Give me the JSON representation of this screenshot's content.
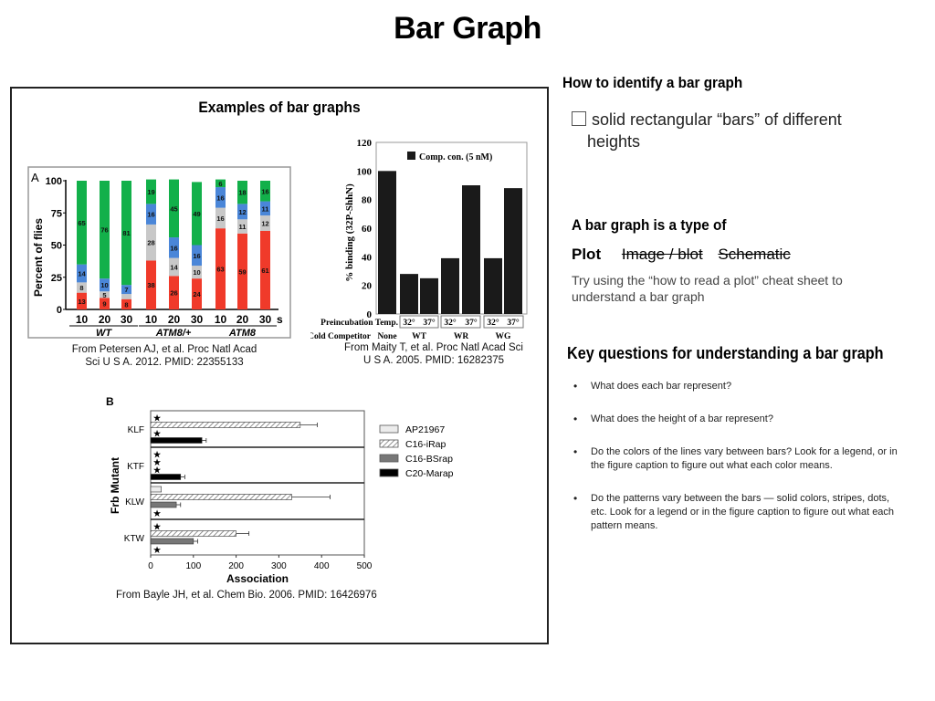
{
  "page": {
    "title": "Bar Graph"
  },
  "left_panel": {
    "title": "Examples of bar graphs",
    "captions": {
      "petersen": [
        "From Petersen AJ, et al. Proc Natl Acad",
        "Sci U S A. 2012. PMID: 22355133"
      ],
      "maity": [
        "From Maity T, et al. Proc Natl Acad Sci",
        "U S A. 2005. PMID: 16282375"
      ],
      "bayle": "From Bayle JH, et al. Chem Bio. 2006. PMID: 16426976"
    }
  },
  "right_panel": {
    "identify": {
      "heading": "How to identify a bar graph",
      "checkbox_label_line1": "solid rectangular “bars” of different",
      "checkbox_label_line2": "heights"
    },
    "type_of": {
      "heading": "A bar graph is a type of",
      "selected": "Plot",
      "struck": [
        "Image / blot",
        "Schematic"
      ],
      "hint_line1": "Try using the “how to read a plot” cheat sheet to",
      "hint_line2": "understand a bar graph"
    },
    "key_questions": {
      "heading": "Key questions for understanding a bar graph",
      "items": [
        "What does each bar represent?",
        "What does the height of a bar represent?",
        "Do the colors of the lines vary between bars? Look for a legend, or in the figure caption to figure out what each color means.",
        "Do the patterns vary between the bars — solid colors, stripes, dots, etc. Look for a legend or in the figure caption to figure out what each pattern means."
      ]
    }
  },
  "colors": {
    "red": "#f03a2a",
    "gray": "#c8c8c8",
    "blue": "#4a86d8",
    "green": "#12b04a",
    "black": "#1a1a1a"
  },
  "chart_data": [
    {
      "type": "bar",
      "stacked": true,
      "panel_label": "A",
      "title": "",
      "xlabel": "",
      "ylabel": "Percent of flies",
      "ylim": [
        0,
        100
      ],
      "yticks": [
        0,
        25,
        50,
        75,
        100
      ],
      "categories": [
        "10",
        "20",
        "30",
        "10",
        "20",
        "30",
        "10",
        "20",
        "30"
      ],
      "x_unit": "s",
      "groups": [
        {
          "label": "WT",
          "categories": [
            "10",
            "20",
            "30"
          ]
        },
        {
          "label": "ATM8/+",
          "categories": [
            "10",
            "20",
            "30"
          ]
        },
        {
          "label": "ATM8",
          "categories": [
            "10",
            "20",
            "30"
          ]
        }
      ],
      "series": [
        {
          "name": "red",
          "color": "#f03a2a",
          "values": [
            13,
            9,
            8,
            38,
            26,
            24,
            63,
            59,
            61
          ]
        },
        {
          "name": "gray",
          "color": "#c8c8c8",
          "values": [
            8,
            5,
            4,
            28,
            14,
            10,
            16,
            11,
            12
          ]
        },
        {
          "name": "blue",
          "color": "#4a86d8",
          "values": [
            14,
            10,
            7,
            16,
            16,
            16,
            16,
            12,
            11
          ]
        },
        {
          "name": "green",
          "color": "#12b04a",
          "values": [
            65,
            76,
            81,
            19,
            45,
            49,
            6,
            18,
            16
          ]
        }
      ],
      "labels_shown": [
        [
          "13",
          "8",
          "14",
          "65"
        ],
        [
          "9",
          "5",
          "10",
          "76"
        ],
        [
          "8",
          "",
          "7",
          "81"
        ],
        [
          "38",
          "28",
          "16",
          "19"
        ],
        [
          "26",
          "14",
          "16",
          "45"
        ],
        [
          "24",
          "10",
          "16",
          "49"
        ],
        [
          "63",
          "16",
          "16",
          "6"
        ],
        [
          "59",
          "11",
          "12",
          "18"
        ],
        [
          "61",
          "12",
          "11",
          "16"
        ]
      ],
      "grid": false
    },
    {
      "type": "bar",
      "title": "",
      "ylabel": "% binding (32P-ShhN)",
      "ylim": [
        0,
        120
      ],
      "yticks": [
        0,
        20,
        40,
        60,
        80,
        100,
        120
      ],
      "legend": [
        "Comp. con. (5 nM)"
      ],
      "row_labels": {
        "preincubation_temp_label": "Preincubation Temp.",
        "cold_competitor_label": "Cold Competitor"
      },
      "categories": [
        "None",
        "WT 32°",
        "WT 37°",
        "WR 32°",
        "WR 37°",
        "WG 32°",
        "WG 37°"
      ],
      "temps": [
        "",
        "32°",
        "37°",
        "32°",
        "37°",
        "32°",
        "37°"
      ],
      "competitors": [
        "None",
        "WT",
        "WR",
        "WG"
      ],
      "series": [
        {
          "name": "Comp. con. (5 nM)",
          "color": "#1a1a1a",
          "values": [
            100,
            28,
            25,
            39,
            90,
            39,
            88
          ]
        }
      ],
      "grid": false
    },
    {
      "type": "bar",
      "orientation": "horizontal",
      "panel_label": "B",
      "xlabel": "Association",
      "ylabel": "Frb Mutant",
      "xlim": [
        0,
        500
      ],
      "xticks": [
        0,
        100,
        200,
        300,
        400,
        500
      ],
      "categories": [
        "KLF",
        "KTF",
        "KLW",
        "KTW"
      ],
      "legend": [
        "AP21967",
        "C16-iRap",
        "C16-BSrap",
        "C20-Marap"
      ],
      "series": [
        {
          "name": "AP21967",
          "fill": "light",
          "values": [
            null,
            null,
            25,
            null
          ],
          "stars": [
            true,
            true,
            false,
            true
          ]
        },
        {
          "name": "C16-iRap",
          "fill": "hatched",
          "values": [
            350,
            null,
            330,
            200
          ],
          "errors": [
            40,
            null,
            90,
            30
          ],
          "stars": [
            false,
            true,
            false,
            false
          ]
        },
        {
          "name": "C16-BSrap",
          "fill": "gray",
          "values": [
            null,
            null,
            60,
            100
          ],
          "errors": [
            null,
            null,
            10,
            10
          ],
          "stars": [
            true,
            true,
            false,
            false
          ]
        },
        {
          "name": "C20-Marap",
          "fill": "black",
          "values": [
            120,
            70,
            null,
            null
          ],
          "errors": [
            10,
            10,
            null,
            null
          ],
          "stars": [
            false,
            false,
            true,
            true
          ]
        }
      ],
      "grid": false
    }
  ]
}
